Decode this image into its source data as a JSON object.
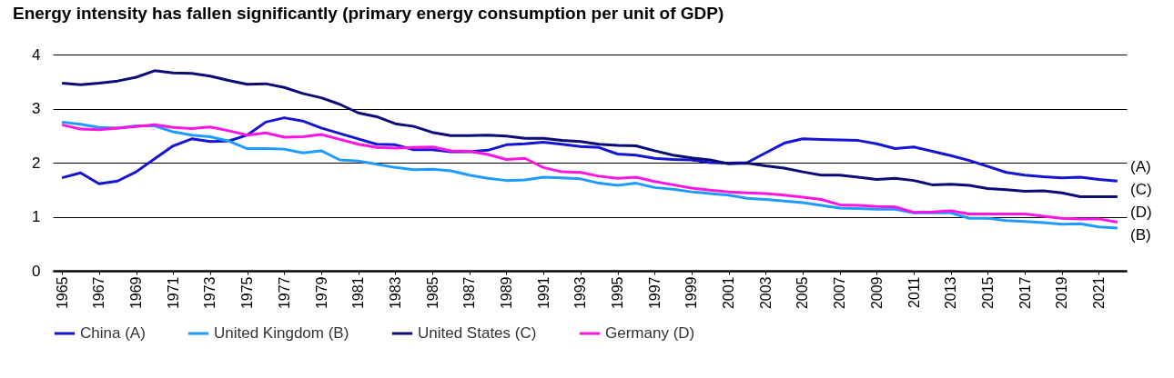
{
  "chart_data": {
    "type": "line",
    "title": "Energy intensity has fallen significantly (primary energy consumption per unit of GDP)",
    "x": [
      1965,
      1966,
      1967,
      1968,
      1969,
      1970,
      1971,
      1972,
      1973,
      1974,
      1975,
      1976,
      1977,
      1978,
      1979,
      1980,
      1981,
      1982,
      1983,
      1984,
      1985,
      1986,
      1987,
      1988,
      1989,
      1990,
      1991,
      1992,
      1993,
      1994,
      1995,
      1996,
      1997,
      1998,
      1999,
      2000,
      2001,
      2002,
      2003,
      2004,
      2005,
      2006,
      2007,
      2008,
      2009,
      2010,
      2011,
      2012,
      2013,
      2014,
      2015,
      2016,
      2017,
      2018,
      2019,
      2020,
      2021,
      2022
    ],
    "series": [
      {
        "name": "China (A)",
        "color": "#1414d2",
        "values": [
          1.72,
          1.81,
          1.61,
          1.66,
          1.83,
          2.07,
          2.31,
          2.44,
          2.39,
          2.4,
          2.51,
          2.75,
          2.83,
          2.77,
          2.64,
          2.54,
          2.44,
          2.34,
          2.33,
          2.24,
          2.24,
          2.2,
          2.2,
          2.23,
          2.33,
          2.35,
          2.38,
          2.34,
          2.3,
          2.28,
          2.16,
          2.14,
          2.08,
          2.06,
          2.05,
          2.0,
          1.99,
          2.0,
          2.18,
          2.36,
          2.44,
          2.43,
          2.42,
          2.41,
          2.35,
          2.26,
          2.29,
          2.21,
          2.13,
          2.04,
          1.93,
          1.82,
          1.77,
          1.74,
          1.72,
          1.73,
          1.69,
          1.66
        ]
      },
      {
        "name": "United Kingdom (B)",
        "color": "#1e9bff",
        "values": [
          2.75,
          2.71,
          2.65,
          2.64,
          2.68,
          2.68,
          2.57,
          2.51,
          2.48,
          2.4,
          2.26,
          2.26,
          2.25,
          2.18,
          2.22,
          2.05,
          2.03,
          1.97,
          1.91,
          1.87,
          1.88,
          1.85,
          1.77,
          1.71,
          1.67,
          1.68,
          1.73,
          1.72,
          1.7,
          1.62,
          1.58,
          1.62,
          1.54,
          1.51,
          1.46,
          1.43,
          1.4,
          1.34,
          1.32,
          1.29,
          1.26,
          1.21,
          1.16,
          1.15,
          1.14,
          1.14,
          1.07,
          1.07,
          1.07,
          0.97,
          0.97,
          0.93,
          0.91,
          0.89,
          0.86,
          0.87,
          0.81,
          0.79
        ]
      },
      {
        "name": "United States (C)",
        "color": "#0c0c78",
        "values": [
          3.47,
          3.44,
          3.47,
          3.51,
          3.58,
          3.7,
          3.66,
          3.65,
          3.6,
          3.52,
          3.45,
          3.46,
          3.39,
          3.28,
          3.2,
          3.08,
          2.92,
          2.85,
          2.72,
          2.67,
          2.56,
          2.5,
          2.5,
          2.51,
          2.49,
          2.45,
          2.45,
          2.41,
          2.39,
          2.34,
          2.32,
          2.31,
          2.22,
          2.14,
          2.09,
          2.05,
          1.98,
          1.99,
          1.94,
          1.9,
          1.83,
          1.77,
          1.77,
          1.73,
          1.69,
          1.71,
          1.67,
          1.59,
          1.6,
          1.58,
          1.52,
          1.5,
          1.47,
          1.48,
          1.44,
          1.37,
          1.37,
          1.37
        ]
      },
      {
        "name": "Germany (D)",
        "color": "#ff14e6",
        "values": [
          2.7,
          2.62,
          2.61,
          2.64,
          2.67,
          2.7,
          2.65,
          2.63,
          2.66,
          2.59,
          2.51,
          2.55,
          2.47,
          2.48,
          2.52,
          2.43,
          2.34,
          2.28,
          2.27,
          2.28,
          2.29,
          2.22,
          2.21,
          2.15,
          2.06,
          2.08,
          1.91,
          1.83,
          1.82,
          1.75,
          1.71,
          1.73,
          1.65,
          1.59,
          1.53,
          1.49,
          1.46,
          1.44,
          1.43,
          1.4,
          1.36,
          1.32,
          1.22,
          1.21,
          1.19,
          1.18,
          1.08,
          1.09,
          1.11,
          1.05,
          1.05,
          1.05,
          1.05,
          1.01,
          0.97,
          0.96,
          0.96,
          0.9
        ]
      }
    ],
    "xlim": [
      1964.5,
      2022.5
    ],
    "xticks": [
      1965,
      1967,
      1969,
      1971,
      1973,
      1975,
      1977,
      1979,
      1981,
      1983,
      1985,
      1987,
      1989,
      1991,
      1993,
      1995,
      1997,
      1999,
      2001,
      2003,
      2005,
      2007,
      2009,
      2011,
      2013,
      2015,
      2017,
      2019,
      2021
    ],
    "ylim": [
      0,
      4
    ],
    "yticks": [
      0,
      1,
      2,
      3,
      4
    ],
    "grid": "y",
    "legend": "bottom",
    "annotations": [
      "(A)",
      "(C)",
      "(D)",
      "(B)"
    ]
  }
}
